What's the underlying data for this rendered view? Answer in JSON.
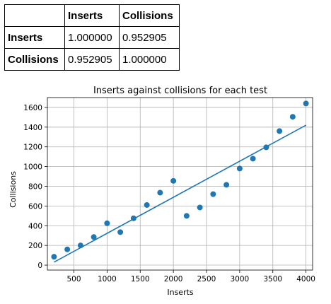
{
  "table": {
    "columns": [
      "Inserts",
      "Collisions"
    ],
    "rows": [
      {
        "label": "Inserts",
        "values": [
          "1.000000",
          "0.952905"
        ]
      },
      {
        "label": "Collisions",
        "values": [
          "0.952905",
          "1.000000"
        ]
      }
    ]
  },
  "chart_data": {
    "type": "scatter",
    "title": "Inserts against collisions for each test",
    "xlabel": "Inserts",
    "ylabel": "Collisions",
    "xlim": [
      100,
      4100
    ],
    "ylim": [
      -50,
      1700
    ],
    "x_ticks": [
      500,
      1000,
      1500,
      2000,
      2500,
      3000,
      3500,
      4000
    ],
    "y_ticks": [
      0,
      200,
      400,
      600,
      800,
      1000,
      1200,
      1400,
      1600
    ],
    "grid": true,
    "points": [
      [
        200,
        85
      ],
      [
        400,
        160
      ],
      [
        600,
        200
      ],
      [
        800,
        285
      ],
      [
        1000,
        425
      ],
      [
        1200,
        335
      ],
      [
        1400,
        475
      ],
      [
        1600,
        610
      ],
      [
        1800,
        735
      ],
      [
        2000,
        855
      ],
      [
        2200,
        500
      ],
      [
        2400,
        585
      ],
      [
        2600,
        720
      ],
      [
        2800,
        815
      ],
      [
        3000,
        980
      ],
      [
        3200,
        1080
      ],
      [
        3400,
        1195
      ],
      [
        3600,
        1360
      ],
      [
        3800,
        1505
      ],
      [
        4000,
        1640
      ]
    ],
    "fit_line": {
      "x": [
        200,
        4000
      ],
      "y": [
        30,
        1420
      ]
    },
    "colors": {
      "points": "#1f77b4",
      "line": "#1f77b4",
      "grid": "#b0b0b0"
    }
  }
}
